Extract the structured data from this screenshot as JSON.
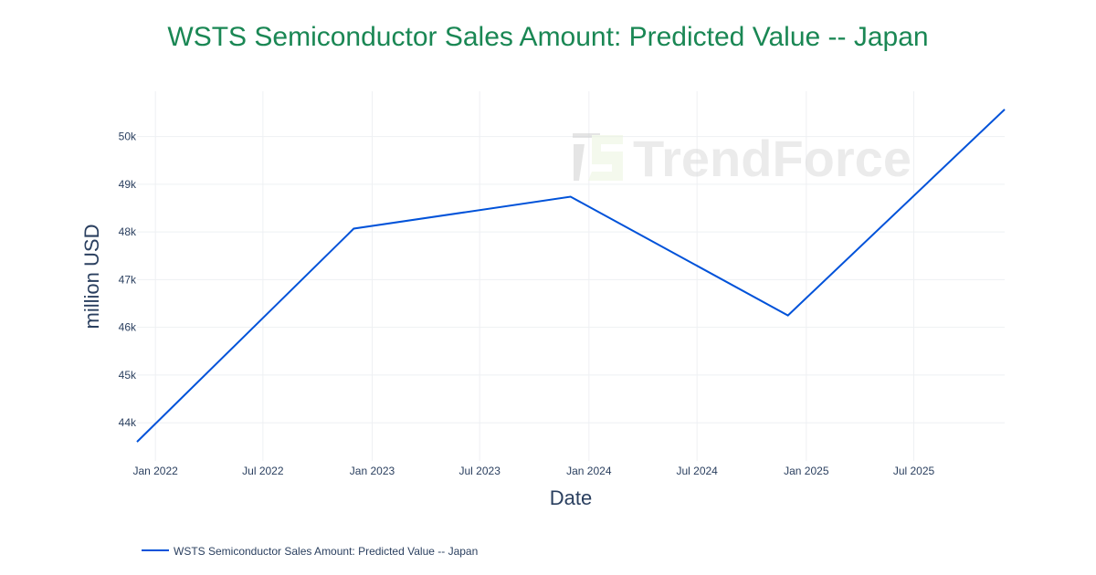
{
  "chart_data": {
    "type": "line",
    "title": "WSTS Semiconductor Sales Amount: Predicted Value -- Japan",
    "xlabel": "Date",
    "ylabel": "million USD",
    "x_ticks": [
      "Jan 2022",
      "Jul 2022",
      "Jan 2023",
      "Jul 2023",
      "Jan 2024",
      "Jul 2024",
      "Jan 2025",
      "Jul 2025"
    ],
    "x_tick_dates": [
      "2022-01-01",
      "2022-07-01",
      "2023-01-01",
      "2023-07-01",
      "2024-01-01",
      "2024-07-01",
      "2025-01-01",
      "2025-07-01"
    ],
    "y_ticks": [
      44000,
      45000,
      46000,
      47000,
      48000,
      49000,
      50000
    ],
    "y_tick_labels": [
      "44k",
      "45k",
      "46k",
      "47k",
      "48k",
      "49k",
      "50k"
    ],
    "xlim": [
      "2021-12-01",
      "2025-12-01"
    ],
    "ylim": [
      43200,
      50950
    ],
    "grid": true,
    "legend_position": "bottom-left",
    "series": [
      {
        "name": "WSTS Semiconductor Sales Amount: Predicted Value -- Japan",
        "color": "#0052d9",
        "x": [
          "2021-12-01",
          "2022-12-01",
          "2023-12-01",
          "2024-12-01",
          "2025-12-01"
        ],
        "y": [
          43600,
          48070,
          48740,
          46250,
          50570
        ]
      }
    ],
    "watermark": "TrendForce"
  }
}
